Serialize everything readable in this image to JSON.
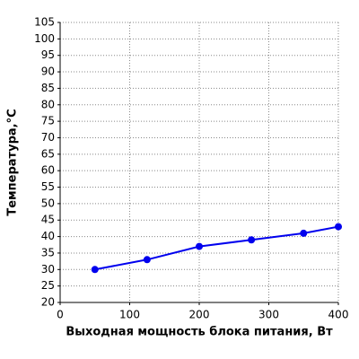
{
  "chart_data": {
    "type": "line",
    "xlabel": "Выходная мощность блока питания, Вт",
    "ylabel": "Температура,°C",
    "x": [
      50,
      125,
      200,
      275,
      350,
      400
    ],
    "series": [
      {
        "name": "Температура",
        "color": "#0000ee",
        "values": [
          30,
          33,
          37,
          39,
          41,
          43
        ]
      }
    ],
    "xlim": [
      0,
      400
    ],
    "ylim": [
      20,
      105
    ],
    "xticks": [
      0,
      100,
      200,
      300,
      400
    ],
    "yticks": [
      20,
      25,
      30,
      35,
      40,
      45,
      50,
      55,
      60,
      65,
      70,
      75,
      80,
      85,
      90,
      95,
      100,
      105
    ],
    "grid": true
  }
}
